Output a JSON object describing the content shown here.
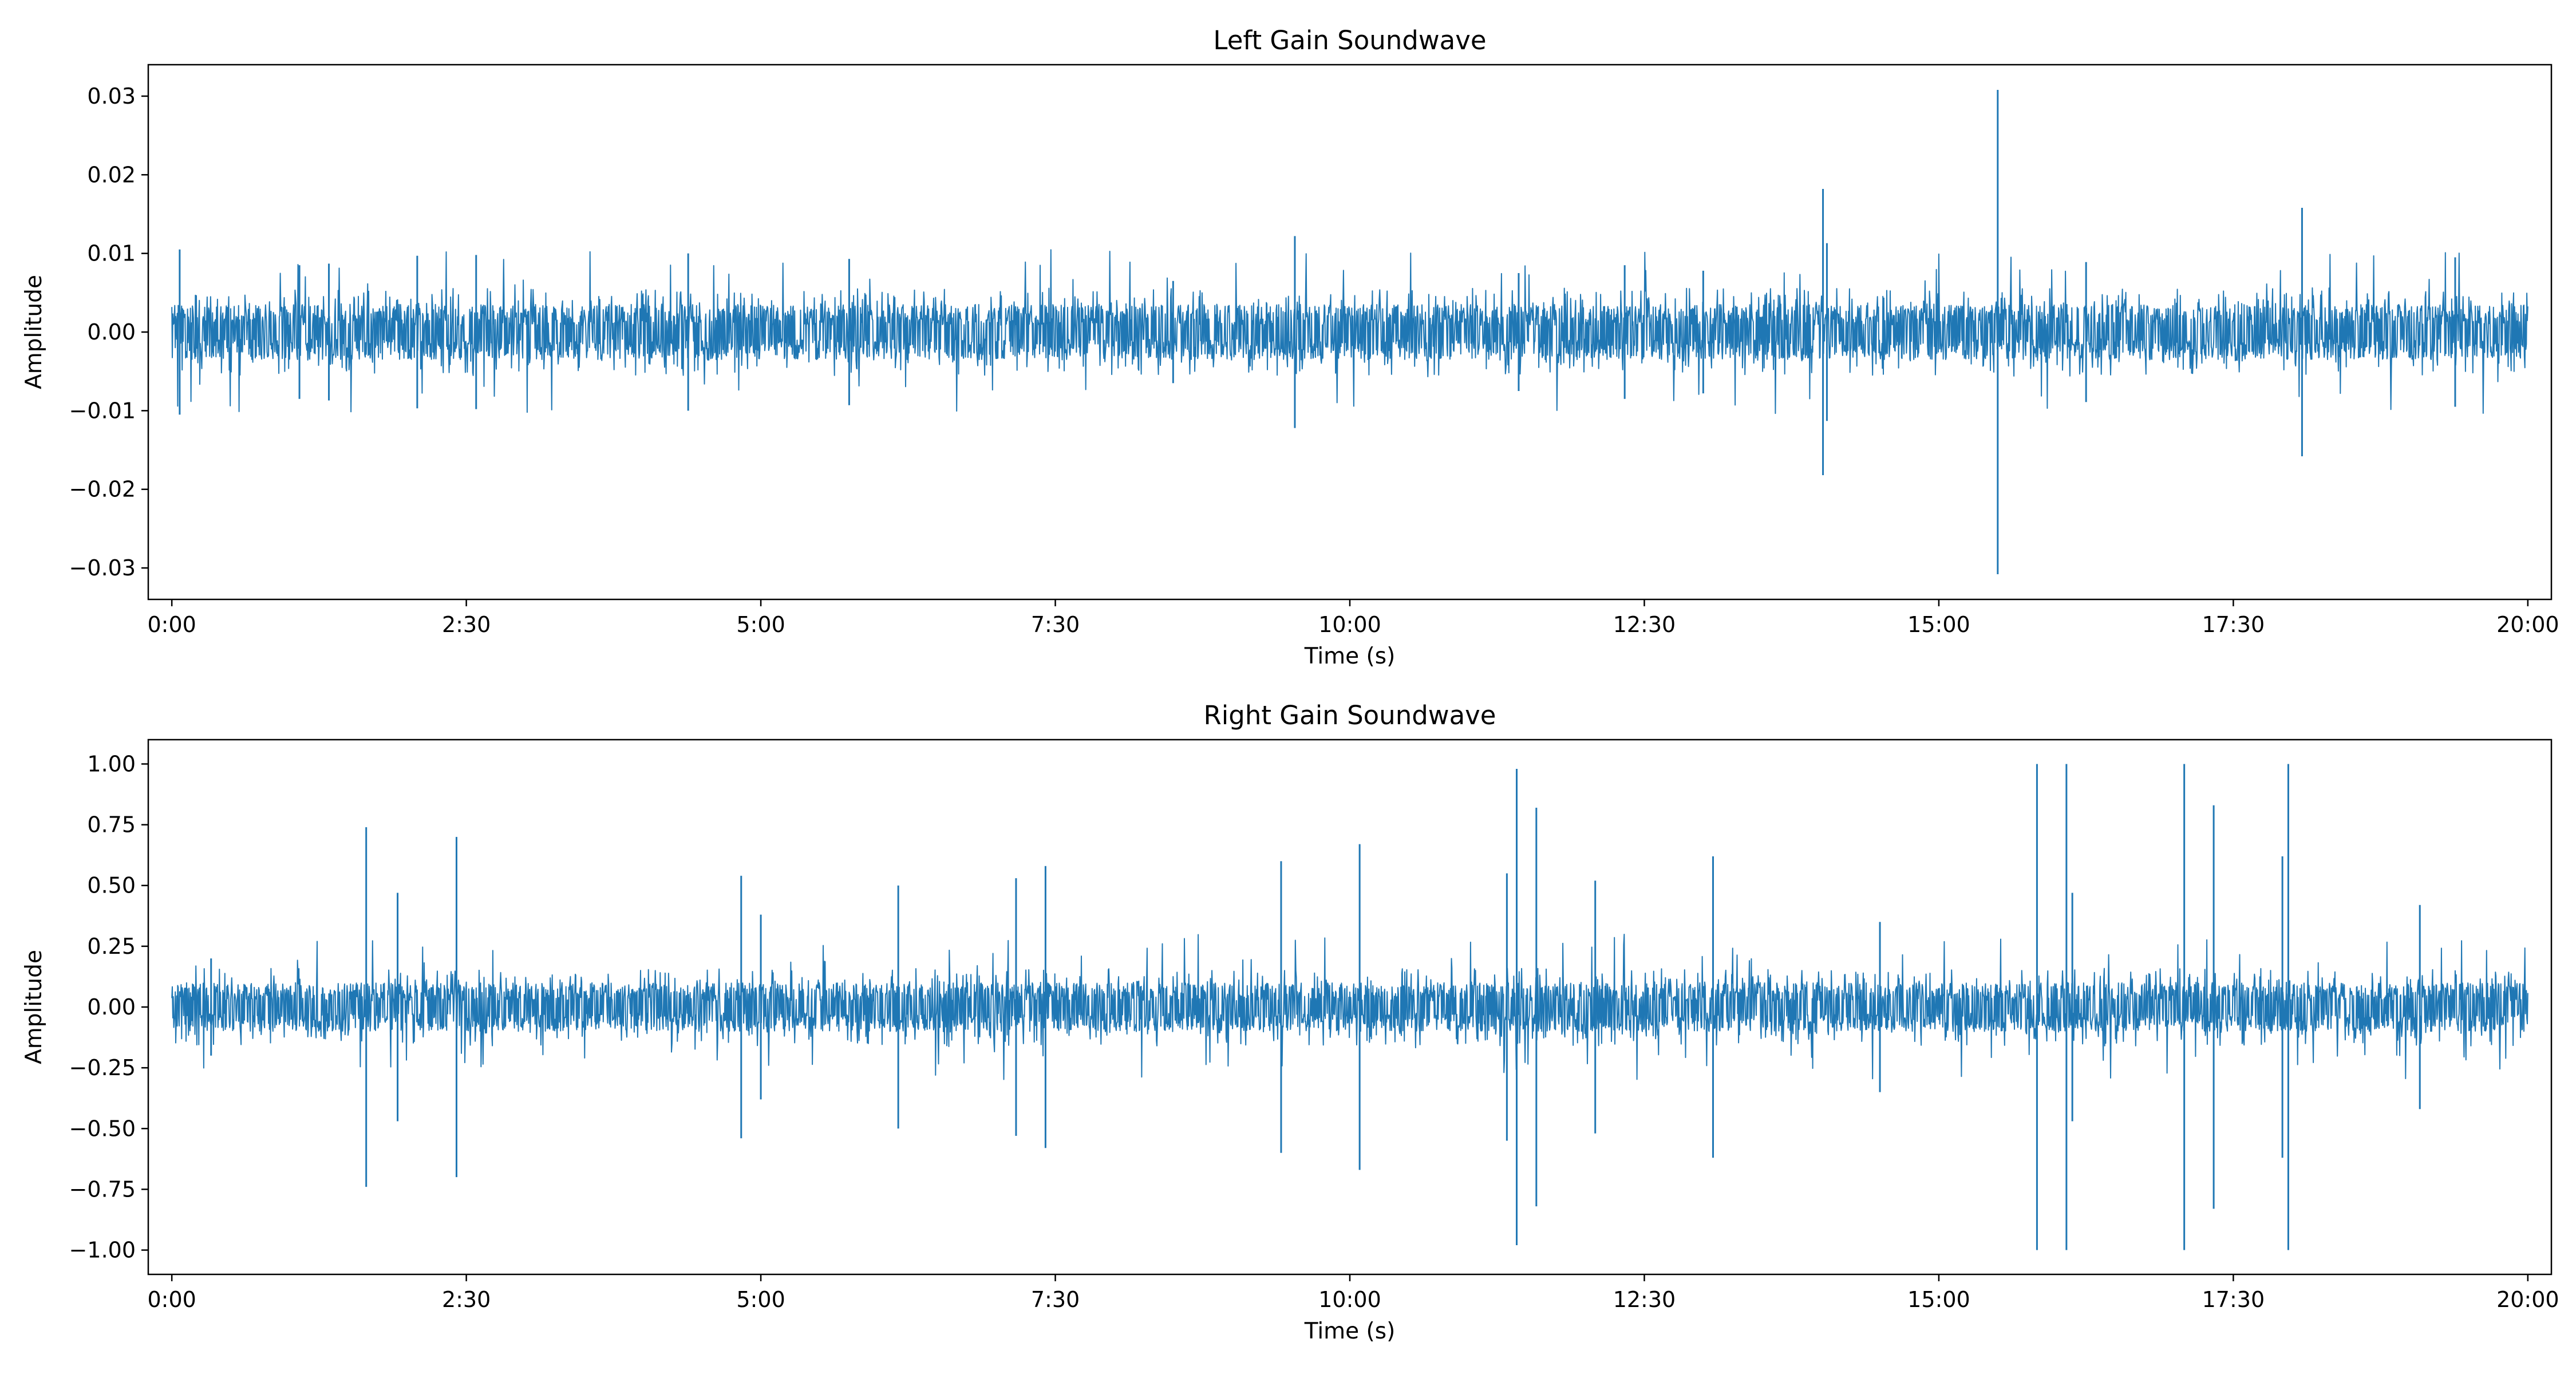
{
  "chart_data": [
    {
      "type": "line",
      "title": "Left Gain Soundwave",
      "xlabel": "Time (s)",
      "ylabel": "Amplitude",
      "xlim": [
        "-0:12",
        "20:12"
      ],
      "ylim": [
        -0.034,
        0.034
      ],
      "xticks": [
        "0:00",
        "2:30",
        "5:00",
        "7:30",
        "10:00",
        "12:30",
        "15:00",
        "17:30",
        "20:00"
      ],
      "yticks": [
        "0.03",
        "0.02",
        "0.01",
        "0.00",
        "-0.01",
        "-0.02",
        "-0.03"
      ],
      "ytick_values": [
        0.03,
        0.02,
        0.01,
        0.0,
        -0.01,
        -0.02,
        -0.03
      ],
      "grid": false,
      "color": "#1f77b4",
      "baseline_amplitude": 0.0035,
      "series": [
        {
          "peaks": [
            {
              "x": "0:04",
              "y": 0.0105
            },
            {
              "x": "1:05",
              "y": 0.0085
            },
            {
              "x": "1:20",
              "y": 0.0087
            },
            {
              "x": "2:05",
              "y": 0.0097
            },
            {
              "x": "2:35",
              "y": 0.0098
            },
            {
              "x": "4:23",
              "y": 0.01
            },
            {
              "x": "5:45",
              "y": 0.0093
            },
            {
              "x": "8:30",
              "y": 0.0065
            },
            {
              "x": "9:32",
              "y": 0.0122
            },
            {
              "x": "11:26",
              "y": 0.0075
            },
            {
              "x": "12:20",
              "y": 0.0085
            },
            {
              "x": "13:00",
              "y": 0.0078
            },
            {
              "x": "14:01",
              "y": 0.0182
            },
            {
              "x": "14:03",
              "y": 0.0113
            },
            {
              "x": "15:30",
              "y": 0.0308
            },
            {
              "x": "16:15",
              "y": 0.0089
            },
            {
              "x": "18:05",
              "y": 0.0158
            },
            {
              "x": "19:23",
              "y": 0.0095
            }
          ]
        }
      ]
    },
    {
      "type": "line",
      "title": "Right Gain Soundwave",
      "xlabel": "Time (s)",
      "ylabel": "Amplitude",
      "xlim": [
        "-0:12",
        "20:12"
      ],
      "ylim": [
        -1.1,
        1.1
      ],
      "xticks": [
        "0:00",
        "2:30",
        "5:00",
        "7:30",
        "10:00",
        "12:30",
        "15:00",
        "17:30",
        "20:00"
      ],
      "yticks": [
        "1.00",
        "0.75",
        "0.50",
        "0.25",
        "0.00",
        "-0.25",
        "-0.50",
        "-0.75",
        "-1.00"
      ],
      "ytick_values": [
        1.0,
        0.75,
        0.5,
        0.25,
        0.0,
        -0.25,
        -0.5,
        -0.75,
        -1.0
      ],
      "grid": false,
      "color": "#1f77b4",
      "baseline_amplitude": 0.1,
      "series": [
        {
          "peaks": [
            {
              "x": "0:20",
              "y": 0.2
            },
            {
              "x": "1:39",
              "y": 0.74
            },
            {
              "x": "1:55",
              "y": 0.47
            },
            {
              "x": "2:25",
              "y": 0.7
            },
            {
              "x": "4:50",
              "y": 0.54
            },
            {
              "x": "5:00",
              "y": 0.38
            },
            {
              "x": "6:10",
              "y": 0.5
            },
            {
              "x": "7:10",
              "y": 0.53
            },
            {
              "x": "7:25",
              "y": 0.58
            },
            {
              "x": "9:25",
              "y": 0.6
            },
            {
              "x": "10:05",
              "y": 0.67
            },
            {
              "x": "11:20",
              "y": 0.55
            },
            {
              "x": "11:25",
              "y": 0.98
            },
            {
              "x": "11:35",
              "y": 0.82
            },
            {
              "x": "12:05",
              "y": 0.52
            },
            {
              "x": "13:05",
              "y": 0.62
            },
            {
              "x": "14:30",
              "y": 0.35
            },
            {
              "x": "15:50",
              "y": 1.0
            },
            {
              "x": "16:05",
              "y": 1.0
            },
            {
              "x": "16:08",
              "y": 0.47
            },
            {
              "x": "17:05",
              "y": 1.0
            },
            {
              "x": "17:20",
              "y": 0.83
            },
            {
              "x": "17:55",
              "y": 0.62
            },
            {
              "x": "17:58",
              "y": 1.0
            },
            {
              "x": "19:05",
              "y": 0.42
            }
          ]
        }
      ]
    }
  ]
}
